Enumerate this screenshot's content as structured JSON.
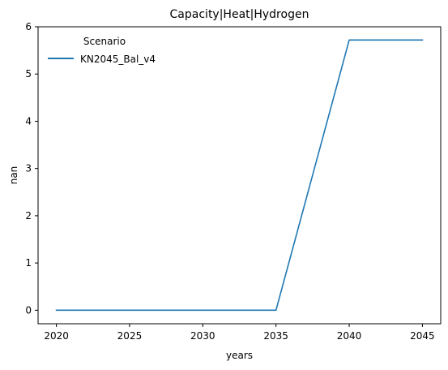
{
  "chart_data": {
    "type": "line",
    "title": "Capacity|Heat|Hydrogen",
    "xlabel": "years",
    "ylabel": "nan",
    "x": [
      2020,
      2025,
      2030,
      2035,
      2040,
      2045
    ],
    "series": [
      {
        "name": "KN2045_Bal_v4",
        "color": "#1f77b4",
        "values": [
          0,
          0,
          0,
          0,
          5.72,
          5.72
        ]
      }
    ],
    "xlim": [
      2018.75,
      2046.25
    ],
    "ylim": [
      -0.286,
      6.0
    ],
    "xticks": [
      2020,
      2025,
      2030,
      2035,
      2040,
      2045
    ],
    "yticks": [
      0,
      1,
      2,
      3,
      4,
      5,
      6
    ],
    "grid": false,
    "legend": {
      "title": "Scenario",
      "placement": "top-left"
    }
  }
}
